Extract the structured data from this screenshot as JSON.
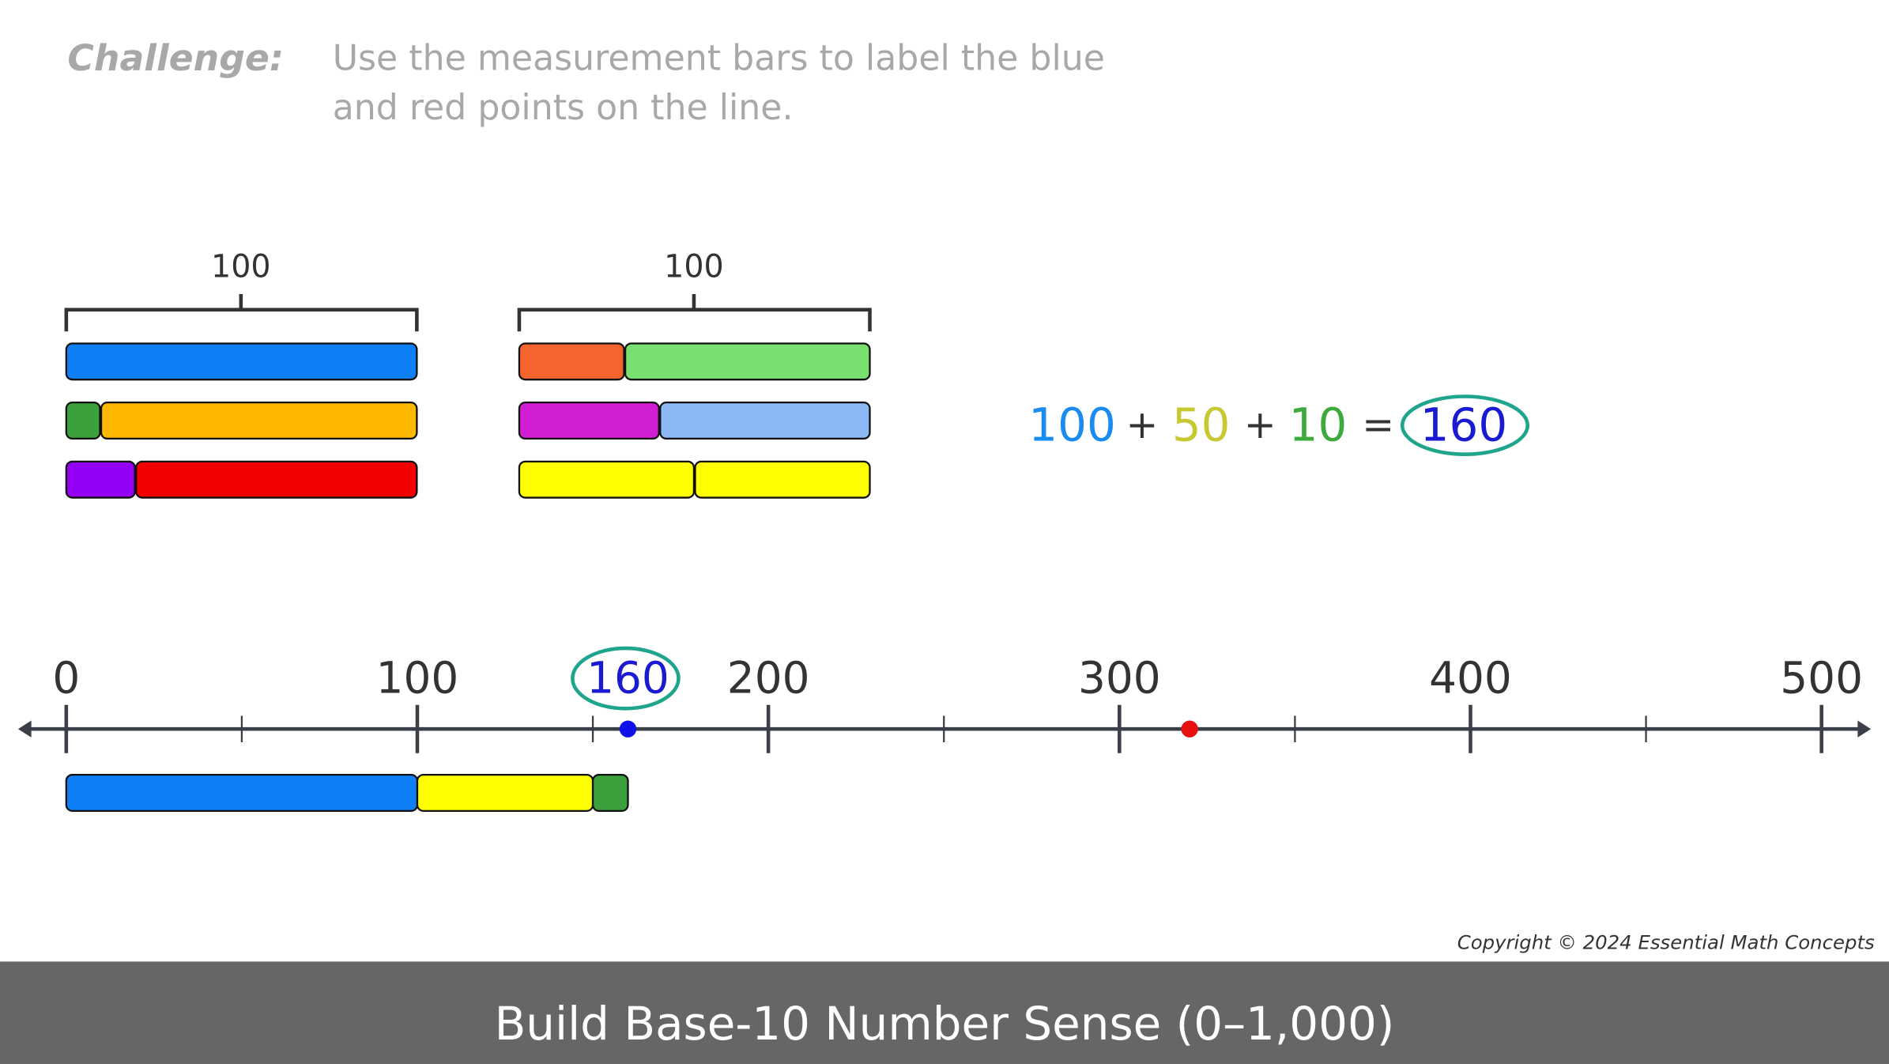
{
  "header": {
    "label": "Challenge:",
    "instruction": [
      "Use the measurement bars to label the blue",
      "and red points on the line."
    ]
  },
  "measurement_groups": [
    {
      "bracket_label": "100"
    },
    {
      "bracket_label": "100"
    }
  ],
  "equation": {
    "terms": [
      {
        "text": "100",
        "color": "#1a8cf0"
      },
      {
        "text": "+",
        "color": "#333333"
      },
      {
        "text": "50",
        "color": "#c8c832"
      },
      {
        "text": "+",
        "color": "#333333"
      },
      {
        "text": "10",
        "color": "#3caa3c"
      },
      {
        "text": "=",
        "color": "#333333"
      },
      {
        "text": "160",
        "color": "#1a1ad2"
      }
    ]
  },
  "number_line": {
    "xlim": [
      0,
      500
    ],
    "labels": [
      0,
      100,
      200,
      300,
      400,
      500
    ],
    "minor_ticks": [
      50,
      150,
      250,
      350,
      450
    ],
    "answer_label": "160",
    "points": [
      {
        "value": 160,
        "color": "#1010e8"
      },
      {
        "value": 320,
        "color": "#e81010"
      }
    ],
    "bar": [
      {
        "value": 100,
        "color": "#0f7ff5"
      },
      {
        "value": 50,
        "color": "#ffff00"
      },
      {
        "value": 10,
        "color": "#3ca03c"
      }
    ]
  },
  "copyright": "Copyright © 2024 Essential Math Concepts",
  "footer": {
    "title": "Build Base-10 Number Sense (0–1,000)"
  }
}
